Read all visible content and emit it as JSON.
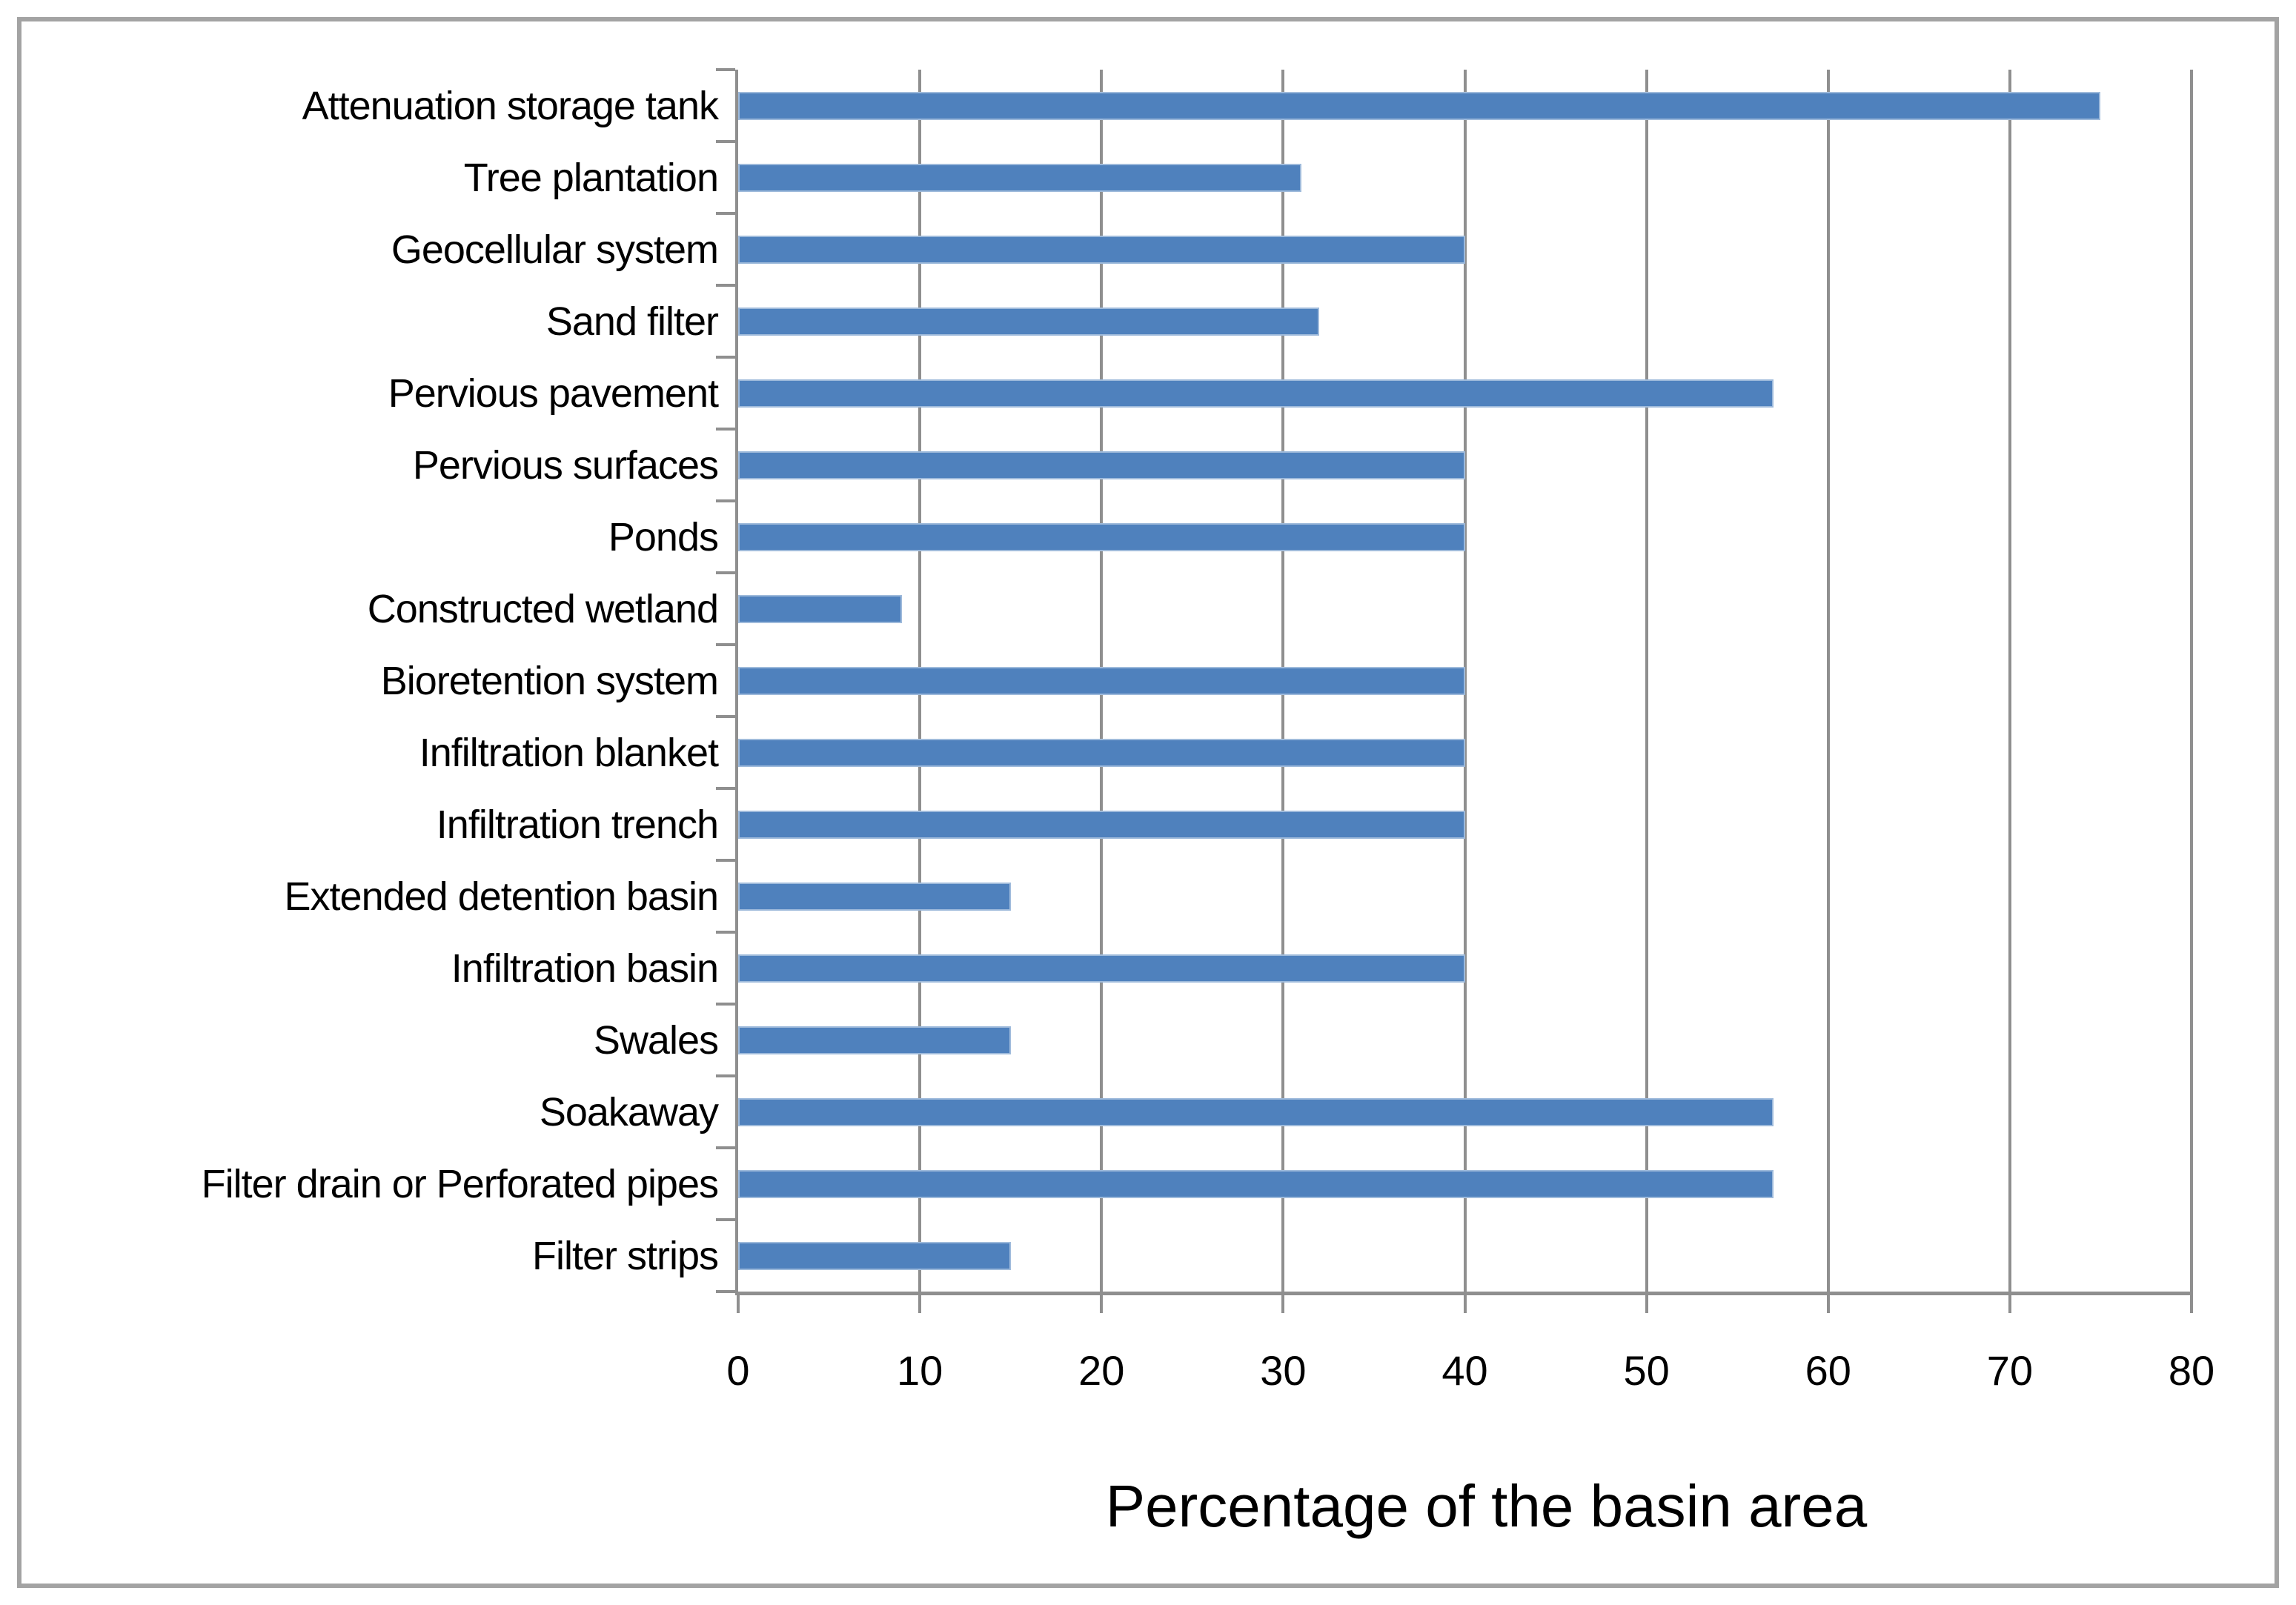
{
  "chart_data": {
    "type": "bar",
    "orientation": "horizontal",
    "title": "",
    "xlabel": "Percentage of the basin area",
    "ylabel": "",
    "xlim": [
      0,
      80
    ],
    "xticks": [
      0,
      10,
      20,
      30,
      40,
      50,
      60,
      70,
      80
    ],
    "grid": "vertical gridlines on",
    "legend_position": "none",
    "categories": [
      "Attenuation storage tank",
      "Tree plantation",
      "Geocellular system",
      "Sand filter",
      "Pervious pavement",
      "Pervious surfaces",
      "Ponds",
      "Constructed wetland",
      "Bioretention system",
      "Infiltration blanket",
      "Infiltration trench",
      "Extended detention basin",
      "Infiltration basin",
      "Swales",
      "Soakaway",
      "Filter drain or Perforated pipes",
      "Filter strips"
    ],
    "values": [
      75,
      31,
      40,
      32,
      57,
      40,
      40,
      9,
      40,
      40,
      40,
      15,
      40,
      15,
      57,
      57,
      15
    ],
    "colors": {
      "bar": "#4F81BD",
      "bar_edge": "#AEC6E2",
      "gridline": "#8F8F8F",
      "axis": "#8F8F8F",
      "frame": "#A3A3A3",
      "text": "#000000"
    }
  }
}
